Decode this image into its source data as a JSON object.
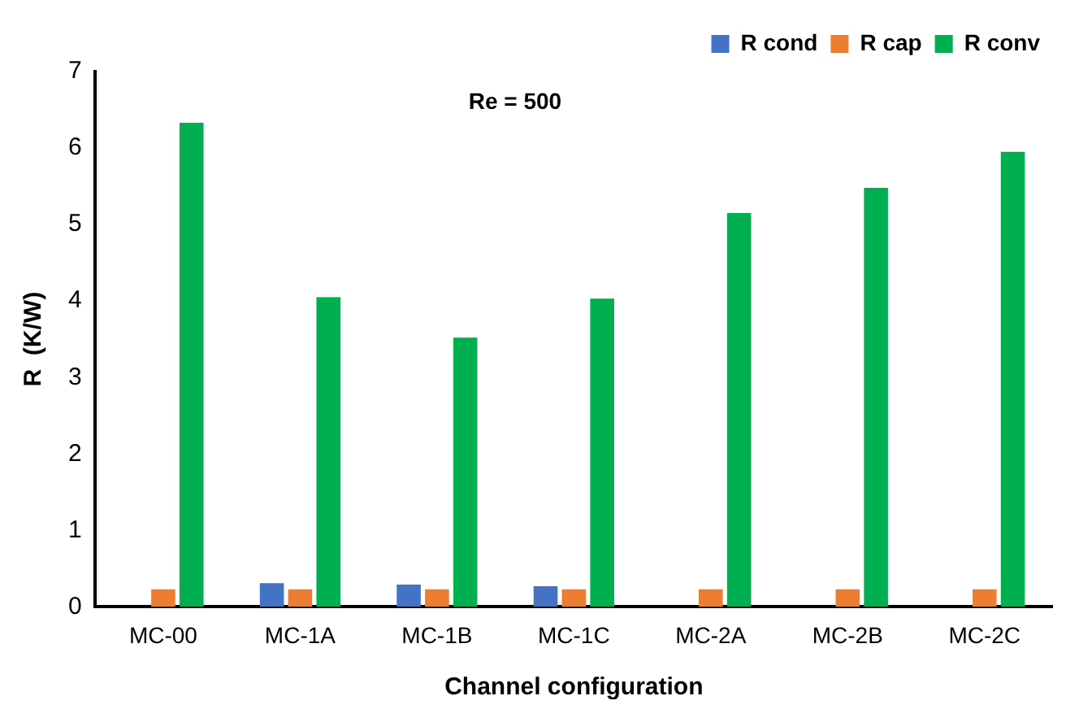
{
  "chart_data": {
    "type": "bar",
    "xlabel": "Channel configuration",
    "ylabel": "R  (K/W)",
    "categories": [
      "MC-00",
      "MC-1A",
      "MC-1B",
      "MC-1C",
      "MC-2A",
      "MC-2B",
      "MC-2C"
    ],
    "series": [
      {
        "name": "R cond",
        "color": "#4472c4",
        "values": [
          null,
          0.31,
          0.29,
          0.27,
          null,
          null,
          null
        ]
      },
      {
        "name": "R cap",
        "color": "#ed7d31",
        "values": [
          0.23,
          0.23,
          0.23,
          0.23,
          0.23,
          0.23,
          0.23
        ]
      },
      {
        "name": "R conv",
        "color": "#00b050",
        "values": [
          6.33,
          4.05,
          3.52,
          4.03,
          5.15,
          5.48,
          5.95
        ]
      }
    ],
    "ylim": [
      0,
      7
    ],
    "yticks": [
      0,
      1,
      2,
      3,
      4,
      5,
      6,
      7
    ],
    "grid": false,
    "legend": "top right",
    "annotations": [
      "Re = 500"
    ]
  }
}
